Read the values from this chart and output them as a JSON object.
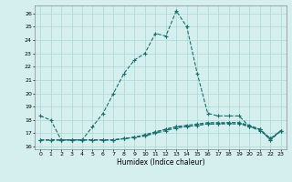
{
  "title": "",
  "xlabel": "Humidex (Indice chaleur)",
  "bg_color": "#d4efee",
  "grid_color": "#aad8d6",
  "line_color": "#1a6e6e",
  "xlim": [
    -0.5,
    23.5
  ],
  "ylim": [
    15.8,
    26.6
  ],
  "yticks": [
    16,
    17,
    18,
    19,
    20,
    21,
    22,
    23,
    24,
    25,
    26
  ],
  "xtick_labels": [
    "0",
    "1",
    "2",
    "3",
    "4",
    "5",
    "6",
    "7",
    "8",
    "9",
    "10",
    "11",
    "12",
    "13",
    "14",
    "15",
    "16",
    "17",
    "18",
    "19",
    "20",
    "21",
    "22",
    "23"
  ],
  "series": [
    [
      18.3,
      18.0,
      16.5,
      16.5,
      16.5,
      17.5,
      18.5,
      20.0,
      21.5,
      22.5,
      23.0,
      24.5,
      24.3,
      26.2,
      25.0,
      21.5,
      18.5,
      18.3,
      18.3,
      18.3,
      17.5,
      17.3,
      16.5,
      17.2
    ],
    [
      16.5,
      16.5,
      16.5,
      16.5,
      16.5,
      16.5,
      16.5,
      16.5,
      16.6,
      16.7,
      16.9,
      17.1,
      17.3,
      17.5,
      17.6,
      17.7,
      17.8,
      17.8,
      17.8,
      17.8,
      17.6,
      17.3,
      16.6,
      17.2
    ],
    [
      16.5,
      16.5,
      16.5,
      16.5,
      16.5,
      16.5,
      16.5,
      16.5,
      16.6,
      16.7,
      16.8,
      17.1,
      17.3,
      17.5,
      17.5,
      17.6,
      17.7,
      17.7,
      17.8,
      17.8,
      17.5,
      17.3,
      16.5,
      17.2
    ],
    [
      16.5,
      16.5,
      16.5,
      16.5,
      16.5,
      16.5,
      16.5,
      16.5,
      16.6,
      16.7,
      16.8,
      17.0,
      17.2,
      17.4,
      17.5,
      17.6,
      17.7,
      17.7,
      17.7,
      17.7,
      17.5,
      17.2,
      16.6,
      17.2
    ]
  ]
}
